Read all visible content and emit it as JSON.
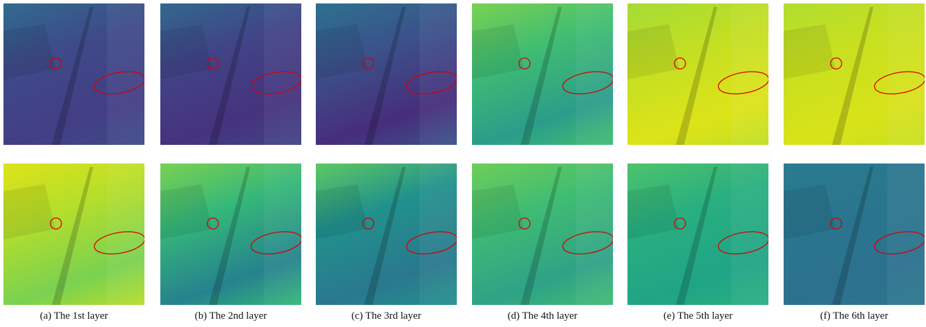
{
  "figure": {
    "captions": [
      "(a) The 1st layer",
      "(b) The 2nd layer",
      "(c) The 3rd layer",
      "(d) The 4th layer",
      "(e) The 5th layer",
      "(f) The 6th layer"
    ]
  }
}
